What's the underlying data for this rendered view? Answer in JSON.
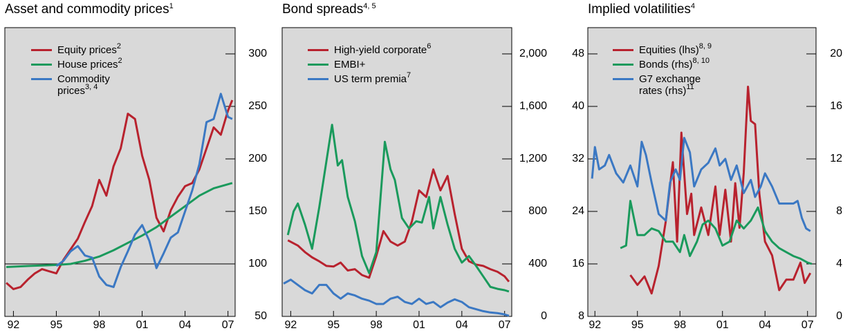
{
  "chart_data": [
    {
      "type": "line",
      "title": "Asset and commodity prices",
      "title_sup": "1",
      "xlim": [
        1991.4,
        2007.5
      ],
      "xticks": [
        {
          "value": 1992,
          "label": "92"
        },
        {
          "value": 1995,
          "label": "95"
        },
        {
          "value": 1998,
          "label": "98"
        },
        {
          "value": 2001,
          "label": "01"
        },
        {
          "value": 2004,
          "label": "04"
        },
        {
          "value": 2007,
          "label": "07"
        }
      ],
      "ylim": [
        50,
        325
      ],
      "yticks": [
        50,
        100,
        150,
        200,
        250,
        300
      ],
      "y_axis_side": "right",
      "reference_line": 100,
      "series": [
        {
          "name": "Equity prices",
          "name_sup": "2",
          "color": "#b8222e",
          "x": [
            1991.5,
            1992,
            1992.5,
            1993,
            1993.5,
            1994,
            1994.5,
            1995,
            1995.5,
            1996,
            1996.5,
            1997,
            1997.5,
            1998,
            1998.5,
            1999,
            1999.5,
            2000,
            2000.5,
            2001,
            2001.5,
            2002,
            2002.5,
            2003,
            2003.5,
            2004,
            2004.5,
            2005,
            2005.5,
            2006,
            2006.5,
            2007,
            2007.3
          ],
          "values": [
            82,
            76,
            78,
            85,
            91,
            95,
            93,
            91,
            104,
            114,
            124,
            140,
            155,
            180,
            165,
            193,
            210,
            243,
            238,
            203,
            180,
            144,
            131,
            151,
            164,
            174,
            177,
            190,
            210,
            230,
            223,
            246,
            256
          ]
        },
        {
          "name": "House prices",
          "name_sup": "2",
          "color": "#1a9a5c",
          "x": [
            1991.5,
            1993,
            1995,
            1996,
            1997,
            1998,
            1999,
            2000,
            2001,
            2002,
            2003,
            2004,
            2005,
            2006,
            2007.3
          ],
          "values": [
            97,
            98,
            99,
            100,
            103,
            107,
            113,
            120,
            127,
            135,
            145,
            155,
            165,
            172,
            177
          ]
        },
        {
          "name": "Commodity prices",
          "name_sup": "3, 4",
          "color": "#3b78c3",
          "x": [
            1995,
            1995.5,
            1996,
            1996.5,
            1997,
            1997.5,
            1998,
            1998.5,
            1999,
            1999.5,
            2000,
            2000.5,
            2001,
            2001.5,
            2002,
            2002.5,
            2003,
            2003.5,
            2004,
            2004.5,
            2005,
            2005.5,
            2006,
            2006.5,
            2007,
            2007.3
          ],
          "values": [
            98,
            103,
            112,
            117,
            108,
            106,
            88,
            80,
            78,
            97,
            112,
            128,
            137,
            122,
            96,
            110,
            125,
            130,
            150,
            170,
            195,
            235,
            238,
            262,
            240,
            238
          ]
        }
      ]
    },
    {
      "type": "line",
      "title": "Bond spreads",
      "title_sup": "4, 5",
      "xlim": [
        1991.4,
        2007.5
      ],
      "xticks": [
        {
          "value": 1992,
          "label": "92"
        },
        {
          "value": 1995,
          "label": "95"
        },
        {
          "value": 1998,
          "label": "98"
        },
        {
          "value": 2001,
          "label": "01"
        },
        {
          "value": 2004,
          "label": "04"
        },
        {
          "value": 2007,
          "label": "07"
        }
      ],
      "ylim": [
        0,
        2200
      ],
      "yticks": [
        0,
        400,
        800,
        {
          "value": 1200,
          "label": "1,200"
        },
        {
          "value": 1600,
          "label": "1,600"
        },
        {
          "value": 2000,
          "label": "2,000"
        }
      ],
      "y_axis_side": "right",
      "series": [
        {
          "name": "High-yield corporate",
          "name_sup": "6",
          "color": "#b8222e",
          "x": [
            1991.8,
            1992.5,
            1993,
            1993.5,
            1994,
            1994.5,
            1995,
            1995.5,
            1996,
            1996.5,
            1997,
            1997.5,
            1998,
            1998.5,
            1999,
            1999.5,
            2000,
            2000.5,
            2001,
            2001.5,
            2002,
            2002.5,
            2003,
            2003.5,
            2004,
            2004.5,
            2005,
            2005.5,
            2006,
            2006.5,
            2007,
            2007.3
          ],
          "values": [
            580,
            540,
            490,
            450,
            420,
            385,
            380,
            410,
            350,
            360,
            315,
            295,
            460,
            650,
            570,
            540,
            570,
            725,
            960,
            910,
            1120,
            960,
            1070,
            780,
            515,
            420,
            395,
            385,
            360,
            340,
            305,
            265
          ]
        },
        {
          "name": "EMBI+",
          "color": "#1a9a5c",
          "x": [
            1991.8,
            1992.2,
            1992.5,
            1993,
            1993.5,
            1994,
            1994.9,
            1995.3,
            1995.6,
            1996,
            1996.5,
            1997,
            1997.5,
            1998,
            1998.6,
            1999,
            1999.3,
            1999.8,
            2000.3,
            2000.8,
            2001.2,
            2001.7,
            2002,
            2002.5,
            2003,
            2003.5,
            2004,
            2004.5,
            2005,
            2005.5,
            2006,
            2006.5,
            2007,
            2007.3
          ],
          "values": [
            620,
            800,
            860,
            700,
            515,
            830,
            1460,
            1150,
            1190,
            910,
            725,
            460,
            330,
            490,
            1330,
            1120,
            1040,
            750,
            670,
            725,
            715,
            910,
            670,
            910,
            700,
            515,
            410,
            460,
            385,
            305,
            225,
            210,
            200,
            190
          ]
        },
        {
          "name": "US term premia",
          "name_sup": "7",
          "color": "#3b78c3",
          "x": [
            1991.5,
            1992,
            1992.5,
            1993,
            1993.5,
            1994,
            1994.5,
            1995,
            1995.5,
            1996,
            1996.5,
            1997,
            1997.5,
            1998,
            1998.5,
            1999,
            1999.5,
            2000,
            2000.5,
            2001,
            2001.5,
            2002,
            2002.5,
            2003,
            2003.5,
            2004,
            2004.5,
            2005,
            2005.5,
            2006,
            2006.5,
            2007,
            2007.3
          ],
          "values": [
            250,
            280,
            240,
            200,
            175,
            240,
            240,
            175,
            135,
            175,
            160,
            135,
            120,
            95,
            95,
            135,
            150,
            110,
            95,
            135,
            95,
            110,
            70,
            105,
            130,
            110,
            70,
            55,
            40,
            30,
            25,
            15,
            5
          ]
        }
      ]
    },
    {
      "type": "line",
      "title": "Implied volatilities",
      "title_sup": "4",
      "xlim": [
        1991.5,
        2007.6
      ],
      "xticks": [
        {
          "value": 1992,
          "label": "92"
        },
        {
          "value": 1995,
          "label": "95"
        },
        {
          "value": 1998,
          "label": "98"
        },
        {
          "value": 2001,
          "label": "01"
        },
        {
          "value": 2004,
          "label": "04"
        },
        {
          "value": 2007,
          "label": "07"
        }
      ],
      "ylim": [
        8,
        52
      ],
      "yticks": [
        8,
        16,
        24,
        32,
        40,
        48
      ],
      "y_axis_side": "left",
      "y2lim": [
        0,
        22
      ],
      "y2ticks": [
        0,
        4,
        8,
        12,
        16,
        20
      ],
      "series": [
        {
          "name": "Equities (lhs)",
          "name_sup": "8, 9",
          "color": "#b8222e",
          "x": [
            1994.5,
            1995,
            1995.5,
            1996,
            1996.5,
            1997,
            1997.5,
            1997.8,
            1998.1,
            1998.5,
            1998.8,
            1999,
            1999.5,
            2000,
            2000.5,
            2000.8,
            2001.2,
            2001.6,
            2001.9,
            2002.2,
            2002.5,
            2002.8,
            2003,
            2003.3,
            2003.6,
            2004,
            2004.5,
            2005,
            2005.5,
            2006,
            2006.5,
            2006.8,
            2007.2
          ],
          "values": [
            14.3,
            12.8,
            14.1,
            11.5,
            15.7,
            22.5,
            31.5,
            19.4,
            36,
            23.6,
            26.7,
            20.4,
            24.6,
            20.4,
            27.8,
            20.4,
            27.3,
            19.4,
            28.3,
            21.5,
            29.9,
            43,
            37.8,
            37.3,
            26.7,
            19.4,
            17.3,
            12,
            13.6,
            13.6,
            16.2,
            13.1,
            14.6
          ]
        },
        {
          "name": "Bonds (rhs)",
          "name_sup": "8, 10",
          "color": "#1a9a5c",
          "axis": "y2",
          "x": [
            1993.8,
            1994.2,
            1994.5,
            1995,
            1995.5,
            1996,
            1996.5,
            1997,
            1997.5,
            1998,
            1998.3,
            1998.7,
            1999.2,
            1999.6,
            2000,
            2000.5,
            2001,
            2001.5,
            2002,
            2002.5,
            2003,
            2003.5,
            2004,
            2004.5,
            2005,
            2005.5,
            2006,
            2006.5,
            2007,
            2007.3
          ],
          "values": [
            5.2,
            5.4,
            8.8,
            6.2,
            6.2,
            6.7,
            6.5,
            5.7,
            5.7,
            4.9,
            6.2,
            4.6,
            5.7,
            7.0,
            7.3,
            6.7,
            5.4,
            5.7,
            7.3,
            6.7,
            7.3,
            8.3,
            6.5,
            5.7,
            5.2,
            4.9,
            4.6,
            4.4,
            4.1,
            4.0
          ]
        },
        {
          "name": "G7 exchange rates (rhs)",
          "name_sup": "11",
          "color": "#3b78c3",
          "axis": "y2",
          "x": [
            1991.8,
            1992,
            1992.3,
            1992.7,
            1993,
            1993.5,
            1994,
            1994.5,
            1995,
            1995.3,
            1995.6,
            1996,
            1996.5,
            1997,
            1997.3,
            1997.7,
            1998,
            1998.3,
            1998.7,
            1999,
            1999.5,
            2000,
            2000.5,
            2000.8,
            2001.2,
            2001.6,
            2002,
            2002.5,
            2003,
            2003.3,
            2003.7,
            2004,
            2004.5,
            2005,
            2005.5,
            2006,
            2006.3,
            2006.6,
            2006.9,
            2007.2
          ],
          "values": [
            10.5,
            12.9,
            11.2,
            11.5,
            12.3,
            10.9,
            10.2,
            11.5,
            9.9,
            13.3,
            12.3,
            10.2,
            7.8,
            7.3,
            10.2,
            11.2,
            10.4,
            13.6,
            12.5,
            9.9,
            11.2,
            11.7,
            12.8,
            11.5,
            12.0,
            10.4,
            11.5,
            9.4,
            10.4,
            9.1,
            9.9,
            10.9,
            9.9,
            8.6,
            8.6,
            8.6,
            8.8,
            7.5,
            6.7,
            6.5
          ]
        }
      ]
    }
  ]
}
